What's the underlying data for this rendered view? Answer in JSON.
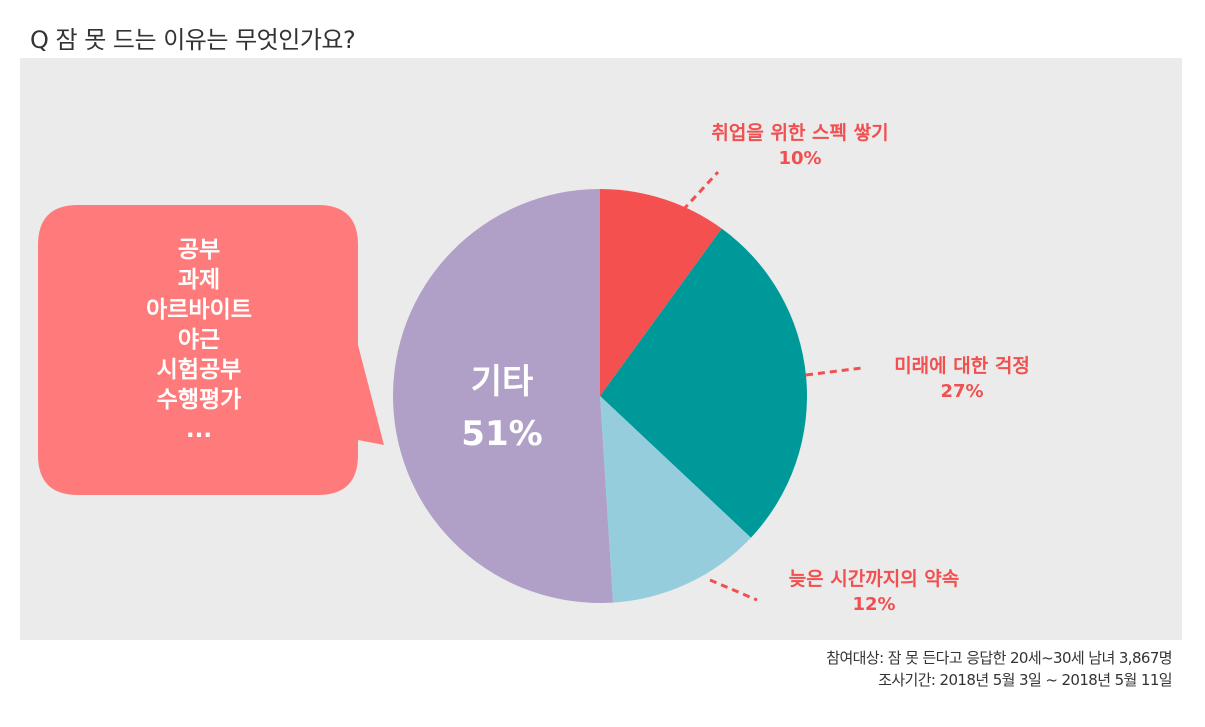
{
  "title": "Q 잠 못 드는 이유는 무엇인가요?",
  "bubble": {
    "items": [
      "공부",
      "과제",
      "아르바이트",
      "야근",
      "시험공부",
      "수행평가",
      "..."
    ],
    "color": "#ff7b7b"
  },
  "chart_data": {
    "type": "pie",
    "start_angle": "12 o'clock",
    "direction": "clockwise",
    "slices": [
      {
        "label": "취업을 위한 스펙 쌓기",
        "value": 10,
        "value_label": "10%",
        "color": "#f55050"
      },
      {
        "label": "미래에 대한 걱정",
        "value": 27,
        "value_label": "27%",
        "color": "#009999"
      },
      {
        "label": "늦은 시간까지의 약속",
        "value": 12,
        "value_label": "12%",
        "color": "#96cddd"
      },
      {
        "label": "기타",
        "value": 51,
        "value_label": "51%",
        "color": "#b0a0c8"
      }
    ],
    "label_color": "#f05050",
    "leader_line_color": "#f05050"
  },
  "footnote": {
    "participants": "참여대상:  잠 못 든다고 응답한 20세~30세 남녀  3,867명",
    "period": "조사기간: 2018년 5월 3일 ~ 2018년 5월 11일"
  }
}
